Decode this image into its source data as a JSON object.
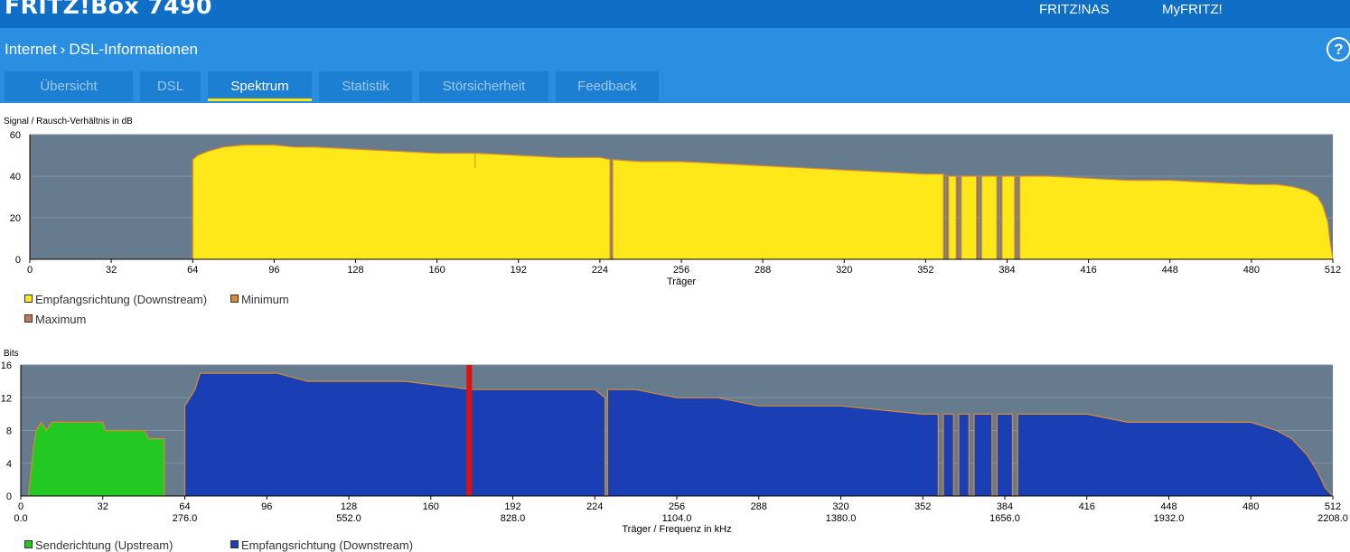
{
  "header": {
    "title": "FRITZ!Box 7490",
    "links": [
      "FRITZ!NAS",
      "MyFRITZ!"
    ]
  },
  "breadcrumb": {
    "section": "Internet",
    "page": "DSL-Informationen",
    "separator": "›"
  },
  "help_symbol": "?",
  "tabs": [
    {
      "label": "Übersicht",
      "active": false
    },
    {
      "label": "DSL",
      "active": false
    },
    {
      "label": "Spektrum",
      "active": true
    },
    {
      "label": "Statistik",
      "active": false
    },
    {
      "label": "Störsicherheit",
      "active": false
    },
    {
      "label": "Feedback",
      "active": false
    }
  ],
  "colors": {
    "top_bar": "#0f6fc6",
    "sub_bar": "#2a8fe0",
    "tab": "#1c7fd2",
    "tab_active_underline": "#ffe600",
    "plot_bg": "#677b8e",
    "snr_fill": "#ffe81a",
    "minmax_line": "#d98b2e",
    "upstream": "#22c922",
    "downstream": "#1a3fb5",
    "pilot_marker": "#e01010"
  },
  "chart_data": [
    {
      "type": "area",
      "ylabel": "Signal / Rausch-Verhältnis in dB",
      "xlabel": "Träger",
      "xlim": [
        0,
        512
      ],
      "ylim": [
        0,
        60
      ],
      "x_ticks": [
        0,
        32,
        64,
        96,
        128,
        160,
        192,
        224,
        256,
        288,
        320,
        352,
        384,
        416,
        448,
        480,
        512
      ],
      "y_ticks": [
        0,
        20,
        40,
        60
      ],
      "grid": true,
      "legend": [
        "Empfangsrichtung (Downstream)",
        "Minimum",
        "Maximum"
      ],
      "legend_placement": "bottom",
      "series": [
        {
          "name": "Empfangsrichtung (Downstream)",
          "color": "#ffe81a",
          "points": [
            [
              64,
              0
            ],
            [
              64,
              48
            ],
            [
              66,
              50
            ],
            [
              70,
              52
            ],
            [
              76,
              54
            ],
            [
              84,
              55
            ],
            [
              96,
              55
            ],
            [
              104,
              54
            ],
            [
              112,
              54
            ],
            [
              128,
              53
            ],
            [
              144,
              52
            ],
            [
              160,
              51
            ],
            [
              176,
              51
            ],
            [
              192,
              50
            ],
            [
              208,
              49
            ],
            [
              224,
              49
            ],
            [
              228,
              48
            ],
            [
              228,
              0
            ],
            [
              229,
              0
            ],
            [
              229,
              48
            ],
            [
              240,
              47
            ],
            [
              256,
              47
            ],
            [
              272,
              46
            ],
            [
              288,
              45
            ],
            [
              304,
              44
            ],
            [
              320,
              43
            ],
            [
              336,
              42
            ],
            [
              352,
              41
            ],
            [
              359,
              41
            ],
            [
              359,
              0
            ],
            [
              361,
              0
            ],
            [
              361,
              40
            ],
            [
              364,
              40
            ],
            [
              364,
              0
            ],
            [
              366,
              0
            ],
            [
              366,
              40
            ],
            [
              372,
              40
            ],
            [
              372,
              0
            ],
            [
              374,
              0
            ],
            [
              374,
              40
            ],
            [
              380,
              40
            ],
            [
              380,
              0
            ],
            [
              382,
              0
            ],
            [
              382,
              40
            ],
            [
              387,
              40
            ],
            [
              387,
              0
            ],
            [
              389,
              0
            ],
            [
              389,
              40
            ],
            [
              400,
              40
            ],
            [
              416,
              39
            ],
            [
              432,
              38
            ],
            [
              448,
              38
            ],
            [
              464,
              37
            ],
            [
              480,
              36
            ],
            [
              490,
              36
            ],
            [
              496,
              35
            ],
            [
              502,
              33
            ],
            [
              506,
              30
            ],
            [
              508,
              26
            ],
            [
              510,
              18
            ],
            [
              511,
              8
            ],
            [
              512,
              0
            ]
          ]
        }
      ],
      "dips": [
        [
          175,
          44
        ],
        [
          228,
          0
        ],
        [
          360,
          0
        ],
        [
          365,
          0
        ],
        [
          373,
          0
        ],
        [
          381,
          0
        ],
        [
          388,
          0
        ]
      ]
    },
    {
      "type": "area",
      "ylabel": "Bits",
      "xlabel": "Träger / Frequenz in kHz",
      "xlim": [
        0,
        512
      ],
      "ylim": [
        0,
        16
      ],
      "x_ticks": [
        0,
        32,
        64,
        96,
        128,
        160,
        192,
        224,
        256,
        288,
        320,
        352,
        384,
        416,
        448,
        480,
        512
      ],
      "freq_ticks": [
        [
          0,
          "0.0"
        ],
        [
          64,
          "276.0"
        ],
        [
          128,
          "552.0"
        ],
        [
          192,
          "828.0"
        ],
        [
          256,
          "1104.0"
        ],
        [
          320,
          "1380.0"
        ],
        [
          384,
          "1656.0"
        ],
        [
          448,
          "1932.0"
        ],
        [
          512,
          "2208.0"
        ]
      ],
      "y_ticks": [
        0,
        4,
        8,
        12,
        16
      ],
      "grid": true,
      "legend": [
        "Senderichtung (Upstream)",
        "Empfangsrichtung (Downstream)"
      ],
      "legend_placement": "bottom",
      "pilot_tone_carrier": 175,
      "series": [
        {
          "name": "Senderichtung (Upstream)",
          "color": "#22c922",
          "points": [
            [
              3,
              0
            ],
            [
              5,
              6
            ],
            [
              6,
              8
            ],
            [
              8,
              9
            ],
            [
              10,
              8
            ],
            [
              12,
              9
            ],
            [
              32,
              9
            ],
            [
              33,
              8
            ],
            [
              48,
              8
            ],
            [
              50,
              7
            ],
            [
              56,
              7
            ],
            [
              56,
              0
            ]
          ]
        },
        {
          "name": "Empfangsrichtung (Downstream)",
          "color": "#1a3fb5",
          "points": [
            [
              64,
              0
            ],
            [
              64,
              11
            ],
            [
              66,
              12
            ],
            [
              68,
              13
            ],
            [
              70,
              15
            ],
            [
              100,
              15
            ],
            [
              112,
              14
            ],
            [
              128,
              14
            ],
            [
              150,
              14
            ],
            [
              176,
              13
            ],
            [
              208,
              13
            ],
            [
              224,
              13
            ],
            [
              228,
              12
            ],
            [
              228,
              0
            ],
            [
              229,
              0
            ],
            [
              229,
              13
            ],
            [
              240,
              13
            ],
            [
              256,
              12
            ],
            [
              272,
              12
            ],
            [
              288,
              11
            ],
            [
              320,
              11
            ],
            [
              352,
              10
            ],
            [
              358,
              10
            ],
            [
              358,
              0
            ],
            [
              360,
              0
            ],
            [
              360,
              10
            ],
            [
              364,
              10
            ],
            [
              364,
              0
            ],
            [
              366,
              0
            ],
            [
              366,
              10
            ],
            [
              370,
              10
            ],
            [
              370,
              0
            ],
            [
              372,
              0
            ],
            [
              372,
              10
            ],
            [
              379,
              10
            ],
            [
              379,
              0
            ],
            [
              381,
              0
            ],
            [
              381,
              10
            ],
            [
              387,
              10
            ],
            [
              387,
              0
            ],
            [
              389,
              0
            ],
            [
              389,
              10
            ],
            [
              416,
              10
            ],
            [
              432,
              9
            ],
            [
              448,
              9
            ],
            [
              480,
              9
            ],
            [
              490,
              8
            ],
            [
              496,
              7
            ],
            [
              502,
              5
            ],
            [
              506,
              3
            ],
            [
              509,
              1
            ],
            [
              512,
              0
            ]
          ]
        }
      ]
    }
  ]
}
